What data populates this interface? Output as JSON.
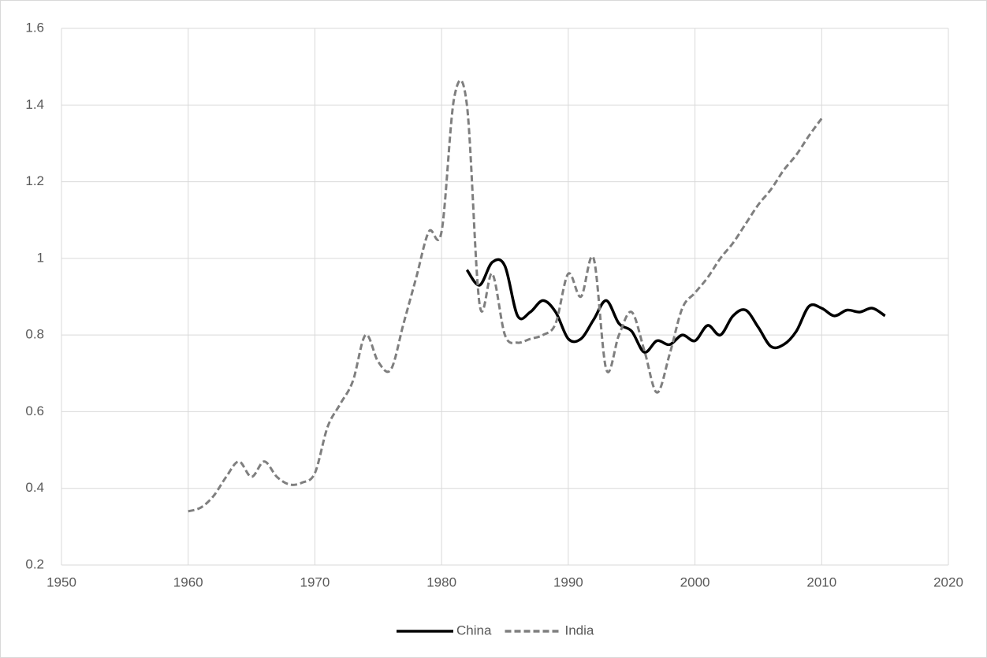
{
  "chart_data": {
    "type": "line",
    "series": [
      {
        "name": "China",
        "color": "#000000",
        "dash": false,
        "x": [
          1982,
          1983,
          1984,
          1985,
          1986,
          1987,
          1988,
          1989,
          1990,
          1991,
          1992,
          1993,
          1994,
          1995,
          1996,
          1997,
          1998,
          1999,
          2000,
          2001,
          2002,
          2003,
          2004,
          2005,
          2006,
          2007,
          2008,
          2009,
          2010,
          2011,
          2012,
          2013,
          2014,
          2015
        ],
        "values": [
          0.97,
          0.93,
          0.99,
          0.98,
          0.85,
          0.86,
          0.89,
          0.86,
          0.79,
          0.79,
          0.84,
          0.89,
          0.83,
          0.81,
          0.755,
          0.785,
          0.775,
          0.8,
          0.785,
          0.825,
          0.8,
          0.85,
          0.865,
          0.82,
          0.77,
          0.775,
          0.81,
          0.875,
          0.87,
          0.85,
          0.865,
          0.86,
          0.87,
          0.85
        ]
      },
      {
        "name": "India",
        "color": "#7f7f7f",
        "dash": true,
        "x": [
          1960,
          1961,
          1962,
          1963,
          1964,
          1965,
          1966,
          1967,
          1968,
          1969,
          1970,
          1971,
          1972,
          1973,
          1974,
          1975,
          1976,
          1977,
          1978,
          1979,
          1980,
          1981,
          1982,
          1983,
          1984,
          1985,
          1986,
          1987,
          1988,
          1989,
          1990,
          1991,
          1992,
          1993,
          1994,
          1995,
          1996,
          1997,
          1998,
          1999,
          2000,
          2001,
          2002,
          2003,
          2004,
          2005,
          2006,
          2007,
          2008,
          2009,
          2010
        ],
        "values": [
          0.34,
          0.35,
          0.38,
          0.43,
          0.47,
          0.43,
          0.47,
          0.43,
          0.41,
          0.415,
          0.44,
          0.56,
          0.62,
          0.68,
          0.8,
          0.73,
          0.71,
          0.83,
          0.95,
          1.07,
          1.07,
          1.42,
          1.4,
          0.88,
          0.96,
          0.8,
          0.78,
          0.79,
          0.8,
          0.83,
          0.96,
          0.9,
          1.0,
          0.71,
          0.8,
          0.86,
          0.76,
          0.65,
          0.75,
          0.87,
          0.91,
          0.95,
          1.0,
          1.04,
          1.09,
          1.14,
          1.18,
          1.23,
          1.27,
          1.32,
          1.365
        ]
      }
    ],
    "xlim": [
      1950,
      2020
    ],
    "xticks": [
      1950,
      1960,
      1970,
      1980,
      1990,
      2000,
      2010,
      2020
    ],
    "ylim": [
      0.2,
      1.6
    ],
    "yticks": [
      0.2,
      0.4,
      0.6,
      0.8,
      1,
      1.2,
      1.4,
      1.6
    ],
    "grid": true,
    "legend": "bottom"
  }
}
